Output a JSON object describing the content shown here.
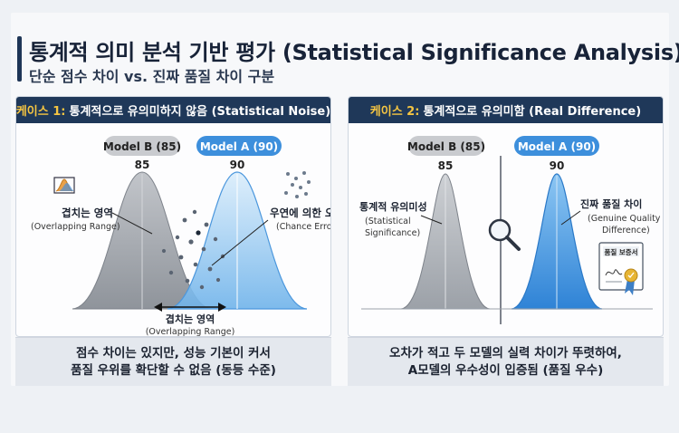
{
  "title": "통계적 의미 분석 기반 평가 (Statistical Significance Analysis)",
  "subtitle": "단순 점수 차이 vs. 진짜 품질 차이 구분",
  "left_panel": {
    "header_case": "케이스 1:",
    "header_text": "통계적으로 유의미하지 않음 (Statistical Noise)",
    "model_b_label": "Model B (85)",
    "model_a_label": "Model A (90)",
    "peak_b": "85",
    "peak_a": "90",
    "overlap_ko": "겹치는 영역",
    "overlap_en": "(Overlapping Range)",
    "chance_ko": "우연에 의한 오차",
    "chance_en": "(Chance Error)",
    "bottom_ko": "겹치는 영역",
    "bottom_en": "(Overlapping Range)",
    "footer_line1": "점수 차이는 있지만, 성능 기본이 커서",
    "footer_line2": "품질 우위를 확단할 수 없음 (동등 수준)"
  },
  "right_panel": {
    "header_case": "케이스 2:",
    "header_text": "통계적으로 유의미함 (Real Difference)",
    "model_b_label": "Model B (85)",
    "model_a_label": "Model A (90)",
    "peak_b": "85",
    "peak_a": "90",
    "sig_ko": "통계적 유의미성",
    "sig_en1": "(Statistical",
    "sig_en2": "Significance)",
    "quality_ko": "진짜 품질 차이",
    "quality_en1": "(Genuine Quality",
    "quality_en2": "Difference)",
    "cert_label": "품질 보증서",
    "footer_line1": "오차가 적고 두 모델의 실력 차이가 뚜렷하여,",
    "footer_line2": "A모델의 우수성이 입증됨 (품질 우수)"
  },
  "colors": {
    "navy": "#1f3859",
    "gold": "#f5c542",
    "gray_curve": "#a9adb3",
    "blue_curve": "#5aa6e8",
    "blue_badge": "#3d8fdc"
  },
  "icons": [
    "chart-icon",
    "scatter-dots-icon",
    "magnifier-icon",
    "certificate-icon",
    "arrow-icon"
  ]
}
